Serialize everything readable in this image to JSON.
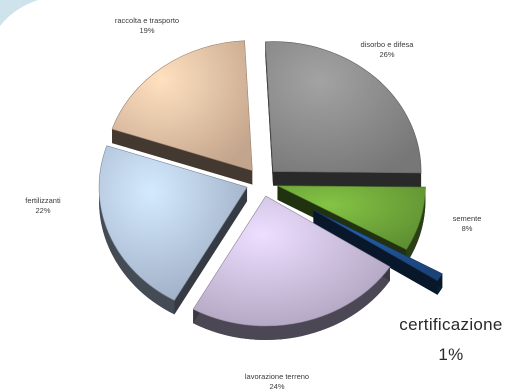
{
  "chart_data": {
    "type": "pie",
    "title": "",
    "slices": [
      {
        "label": "disorbo e difesa",
        "value": 26,
        "value_label": "26%",
        "color": "#8a8a8a"
      },
      {
        "label": "semente",
        "value": 8,
        "value_label": "8%",
        "color": "#6fa63a"
      },
      {
        "label": "certificazione",
        "value": 1,
        "value_label": "1%",
        "color": "#1f4e8c"
      },
      {
        "label": "lavorazione terreno",
        "value": 24,
        "value_label": "24%",
        "color": "#c9bcdc"
      },
      {
        "label": "fertilizzanti",
        "value": 22,
        "value_label": "22%",
        "color": "#b4c6e0"
      },
      {
        "label": "raccolta e trasporto",
        "value": 19,
        "value_label": "19%",
        "color": "#e3bfa3"
      }
    ],
    "style": "3d-exploded",
    "legend": "none"
  }
}
